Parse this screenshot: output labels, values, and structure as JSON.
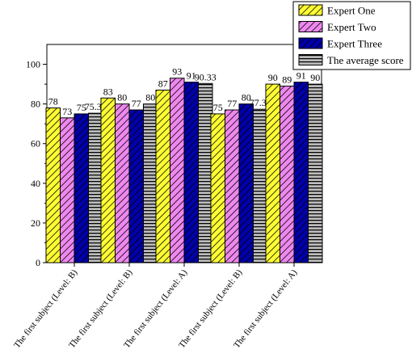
{
  "chart_data": {
    "type": "bar",
    "title": "",
    "xlabel": "",
    "ylabel": "",
    "ylim": [
      0,
      110
    ],
    "yticks": [
      0,
      20,
      40,
      60,
      80,
      100
    ],
    "grid": false,
    "legend_position": "top-right",
    "categories": [
      "The first subject (Level: B)",
      "The first subject (Level: B)",
      "The first subject (Level: A)",
      "The first subject (Level: B)",
      "The first subject (Level: A)"
    ],
    "series": [
      {
        "name": "Expert One",
        "values": [
          78,
          83,
          87,
          75,
          90
        ],
        "value_labels": [
          "78",
          "83",
          "87",
          "75",
          "90"
        ],
        "color": "#ffff33",
        "pattern": "diagonal-stripes"
      },
      {
        "name": "Expert Two",
        "values": [
          73,
          80,
          93,
          77,
          89
        ],
        "value_labels": [
          "73",
          "80",
          "93",
          "77",
          "89"
        ],
        "color": "#ee88ee",
        "pattern": "diagonal-stripes"
      },
      {
        "name": "Expert Three",
        "values": [
          75,
          77,
          91,
          80,
          91
        ],
        "value_labels": [
          "75",
          "77",
          "91",
          "80",
          "91"
        ],
        "color": "#0000aa",
        "pattern": "diagonal-stripes"
      },
      {
        "name": "The average score",
        "values": [
          75.33,
          80,
          90.33,
          77.33,
          90
        ],
        "value_labels": [
          "75.33",
          "80",
          "90.33",
          "77.33",
          "90"
        ],
        "color": "#bbbbbb",
        "pattern": "horizontal-stripes"
      }
    ]
  }
}
